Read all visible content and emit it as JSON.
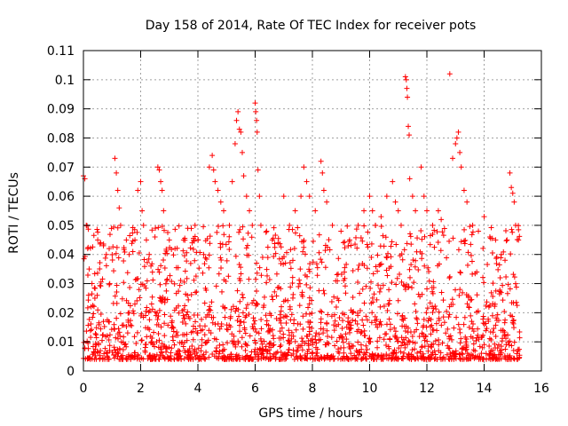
{
  "chart_data": {
    "type": "scatter",
    "title": "Day 158 of 2014, Rate Of TEC Index for receiver pots",
    "xlabel": "GPS time / hours",
    "ylabel": "ROTI / TECUs",
    "xlim": [
      0,
      16
    ],
    "ylim": [
      0,
      0.11
    ],
    "xticks": [
      0,
      2,
      4,
      6,
      8,
      10,
      12,
      14,
      16
    ],
    "yticks": [
      0,
      0.01,
      0.02,
      0.03,
      0.04,
      0.05,
      0.06,
      0.07,
      0.08,
      0.09,
      0.1,
      0.11
    ],
    "xtick_labels": [
      "0",
      "2",
      "4",
      "6",
      "8",
      "10",
      "12",
      "14",
      "16"
    ],
    "ytick_labels": [
      "0",
      "0.01",
      "0.02",
      "0.03",
      "0.04",
      "0.05",
      "0.06",
      "0.07",
      "0.08",
      "0.09",
      "0.1",
      "0.11"
    ],
    "grid": true,
    "marker": "plus",
    "series_color": "#ff0000",
    "x_data_max": 15.25,
    "series": [
      {
        "name": "ROTI",
        "points": [
          [
            0.0,
            0.067
          ],
          [
            0.05,
            0.066
          ],
          [
            0.1,
            0.05
          ],
          [
            0.15,
            0.042
          ],
          [
            0.2,
            0.035
          ],
          [
            0.3,
            0.03
          ],
          [
            0.4,
            0.025
          ],
          [
            0.5,
            0.045
          ],
          [
            0.6,
            0.044
          ],
          [
            0.7,
            0.043
          ],
          [
            0.8,
            0.04
          ],
          [
            0.9,
            0.042
          ],
          [
            1.1,
            0.073
          ],
          [
            1.15,
            0.068
          ],
          [
            1.2,
            0.062
          ],
          [
            1.25,
            0.056
          ],
          [
            1.3,
            0.05
          ],
          [
            1.5,
            0.045
          ],
          [
            1.6,
            0.04
          ],
          [
            1.8,
            0.045
          ],
          [
            1.9,
            0.062
          ],
          [
            2.0,
            0.065
          ],
          [
            2.05,
            0.055
          ],
          [
            2.1,
            0.05
          ],
          [
            2.2,
            0.045
          ],
          [
            2.3,
            0.04
          ],
          [
            2.5,
            0.046
          ],
          [
            2.6,
            0.07
          ],
          [
            2.65,
            0.069
          ],
          [
            2.7,
            0.065
          ],
          [
            2.75,
            0.062
          ],
          [
            2.8,
            0.055
          ],
          [
            3.0,
            0.045
          ],
          [
            3.2,
            0.042
          ],
          [
            3.5,
            0.045
          ],
          [
            3.8,
            0.044
          ],
          [
            3.9,
            0.05
          ],
          [
            4.0,
            0.045
          ],
          [
            4.2,
            0.04
          ],
          [
            4.4,
            0.07
          ],
          [
            4.5,
            0.074
          ],
          [
            4.55,
            0.069
          ],
          [
            4.6,
            0.065
          ],
          [
            4.7,
            0.062
          ],
          [
            4.8,
            0.058
          ],
          [
            4.9,
            0.055
          ],
          [
            5.1,
            0.05
          ],
          [
            5.2,
            0.065
          ],
          [
            5.3,
            0.078
          ],
          [
            5.35,
            0.086
          ],
          [
            5.4,
            0.089
          ],
          [
            5.45,
            0.083
          ],
          [
            5.5,
            0.082
          ],
          [
            5.55,
            0.075
          ],
          [
            5.6,
            0.067
          ],
          [
            5.7,
            0.06
          ],
          [
            5.8,
            0.055
          ],
          [
            5.9,
            0.05
          ],
          [
            6.0,
            0.092
          ],
          [
            6.02,
            0.089
          ],
          [
            6.05,
            0.086
          ],
          [
            6.07,
            0.082
          ],
          [
            6.1,
            0.069
          ],
          [
            6.15,
            0.06
          ],
          [
            6.2,
            0.05
          ],
          [
            6.4,
            0.048
          ],
          [
            6.6,
            0.045
          ],
          [
            6.8,
            0.044
          ],
          [
            7.0,
            0.06
          ],
          [
            7.2,
            0.05
          ],
          [
            7.4,
            0.055
          ],
          [
            7.6,
            0.06
          ],
          [
            7.7,
            0.07
          ],
          [
            7.8,
            0.065
          ],
          [
            7.9,
            0.06
          ],
          [
            8.1,
            0.055
          ],
          [
            8.3,
            0.072
          ],
          [
            8.35,
            0.068
          ],
          [
            8.4,
            0.062
          ],
          [
            8.5,
            0.058
          ],
          [
            8.7,
            0.05
          ],
          [
            9.0,
            0.048
          ],
          [
            9.3,
            0.045
          ],
          [
            9.6,
            0.05
          ],
          [
            9.8,
            0.055
          ],
          [
            10.0,
            0.06
          ],
          [
            10.1,
            0.055
          ],
          [
            10.2,
            0.05
          ],
          [
            10.4,
            0.053
          ],
          [
            10.6,
            0.06
          ],
          [
            10.8,
            0.065
          ],
          [
            10.9,
            0.058
          ],
          [
            11.0,
            0.055
          ],
          [
            11.1,
            0.05
          ],
          [
            11.25,
            0.101
          ],
          [
            11.28,
            0.1
          ],
          [
            11.3,
            0.097
          ],
          [
            11.32,
            0.094
          ],
          [
            11.35,
            0.084
          ],
          [
            11.38,
            0.081
          ],
          [
            11.4,
            0.066
          ],
          [
            11.5,
            0.06
          ],
          [
            11.6,
            0.055
          ],
          [
            11.8,
            0.07
          ],
          [
            11.9,
            0.06
          ],
          [
            12.0,
            0.055
          ],
          [
            12.2,
            0.05
          ],
          [
            12.4,
            0.055
          ],
          [
            12.5,
            0.052
          ],
          [
            12.8,
            0.102
          ],
          [
            12.9,
            0.073
          ],
          [
            13.0,
            0.078
          ],
          [
            13.05,
            0.08
          ],
          [
            13.1,
            0.082
          ],
          [
            13.15,
            0.075
          ],
          [
            13.2,
            0.07
          ],
          [
            13.3,
            0.062
          ],
          [
            13.4,
            0.058
          ],
          [
            13.6,
            0.05
          ],
          [
            13.8,
            0.048
          ],
          [
            14.0,
            0.053
          ],
          [
            14.2,
            0.046
          ],
          [
            14.4,
            0.045
          ],
          [
            14.6,
            0.04
          ],
          [
            14.8,
            0.045
          ],
          [
            14.9,
            0.068
          ],
          [
            14.95,
            0.063
          ],
          [
            15.0,
            0.061
          ],
          [
            15.05,
            0.058
          ],
          [
            15.1,
            0.05
          ],
          [
            15.2,
            0.045
          ]
        ]
      }
    ]
  }
}
